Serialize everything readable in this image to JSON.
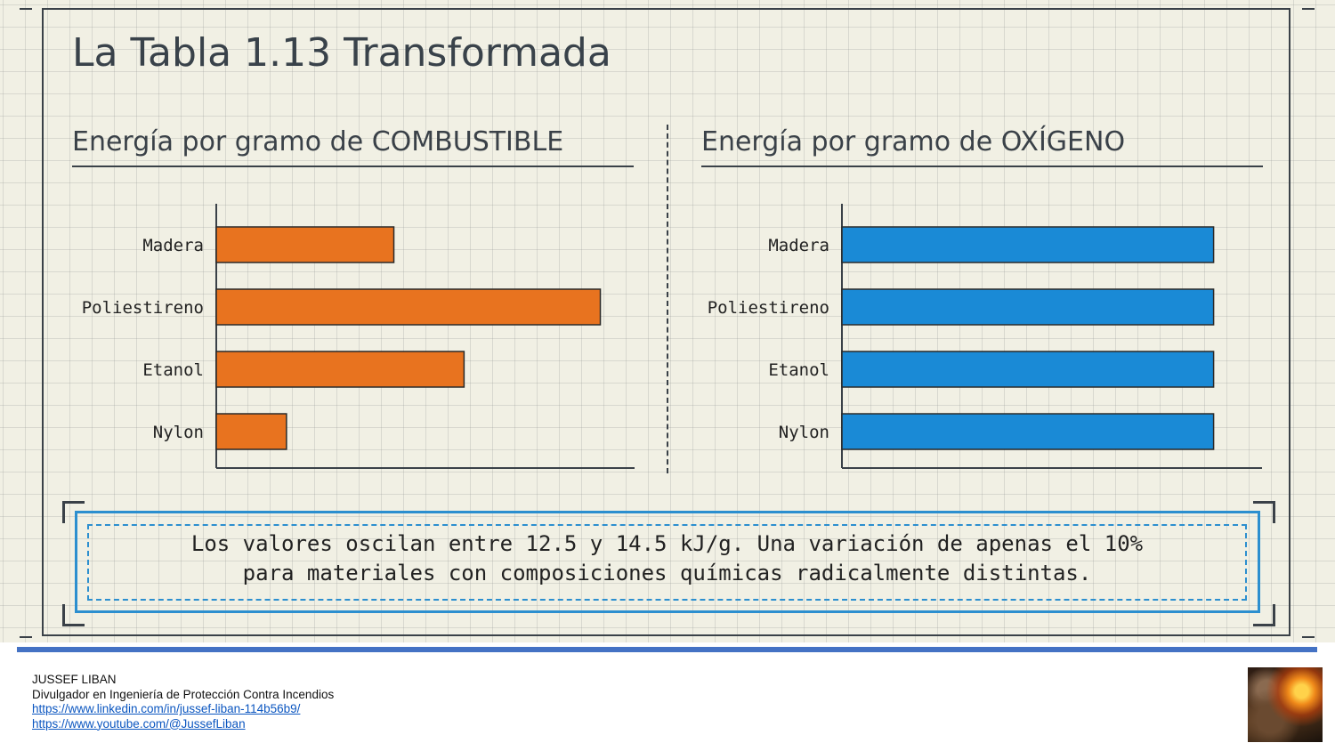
{
  "slide": {
    "title": "La Tabla 1.13 Transformada",
    "note_lines": [
      "Los valores oscilan entre 12.5 y 14.5 kJ/g. Una variación de apenas el 10%",
      "para materiales con composiciones químicas radicalmente distintas."
    ]
  },
  "chart_data": [
    {
      "type": "bar",
      "orientation": "horizontal",
      "title": "Energía por gramo de COMBUSTIBLE",
      "categories": [
        "Madera",
        "Poliestireno",
        "Etanol",
        "Nylon"
      ],
      "values": [
        43,
        93,
        60,
        17
      ],
      "xlim": [
        0,
        100
      ],
      "color": "#e8731f",
      "axis_labels_shown": false,
      "grid": true
    },
    {
      "type": "bar",
      "orientation": "horizontal",
      "title": "Energía por gramo de OXÍGENO",
      "categories": [
        "Madera",
        "Poliestireno",
        "Etanol",
        "Nylon"
      ],
      "values": [
        90,
        90,
        90,
        90
      ],
      "xlim": [
        0,
        100
      ],
      "color": "#1a8ad6",
      "axis_labels_shown": false,
      "grid": true
    }
  ],
  "footer": {
    "name": "JUSSEF LIBAN",
    "role": "Divulgador en Ingeniería de Protección Contra Incendios",
    "linkedin": "https://www.linkedin.com/in/jussef-liban-114b56b9/",
    "youtube": "https://www.youtube.com/@JussefLiban"
  },
  "colors": {
    "background": "#f1f0e4",
    "ink": "#3a4148",
    "fuel_bar": "#e8731f",
    "oxygen_bar": "#1a8ad6",
    "note_border": "#2c8fcf",
    "footer_rule": "#4472c4"
  },
  "icons": {
    "author_photo": "firefighter-photo"
  }
}
